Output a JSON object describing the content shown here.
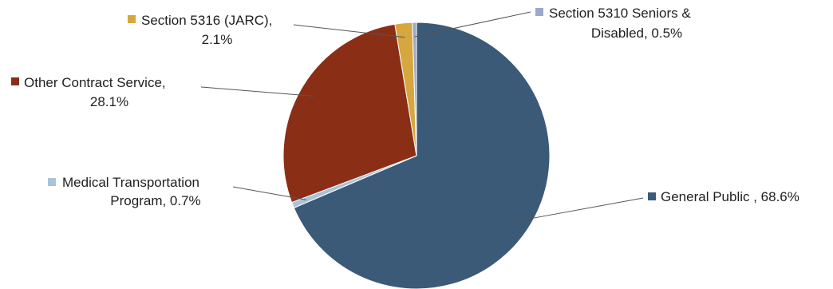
{
  "chart_data": {
    "type": "pie",
    "title": "",
    "slices": [
      {
        "name": "General Public",
        "value": 68.6,
        "label_line1": "General Public , 68.6%",
        "label_line2": "",
        "color": "#3b5a78"
      },
      {
        "name": "Medical Transportation Program",
        "value": 0.7,
        "label_line1": "Medical Transportation",
        "label_line2": "Program, 0.7%",
        "color": "#a9c3d9"
      },
      {
        "name": "Other Contract Service",
        "value": 28.1,
        "label_line1": "Other Contract Service,",
        "label_line2": "28.1%",
        "color": "#8a2f16"
      },
      {
        "name": "Section 5316 (JARC)",
        "value": 2.1,
        "label_line1": "Section 5316 (JARC),",
        "label_line2": "2.1%",
        "color": "#d6a63f"
      },
      {
        "name": "Section 5310 Seniors & Disabled",
        "value": 0.5,
        "label_line1": "Section 5310 Seniors &",
        "label_line2": "Disabled, 0.5%",
        "color": "#9aa9c9"
      }
    ],
    "start": "12 o'clock",
    "direction": "clockwise",
    "legend": "labels beside slices with color markers"
  }
}
